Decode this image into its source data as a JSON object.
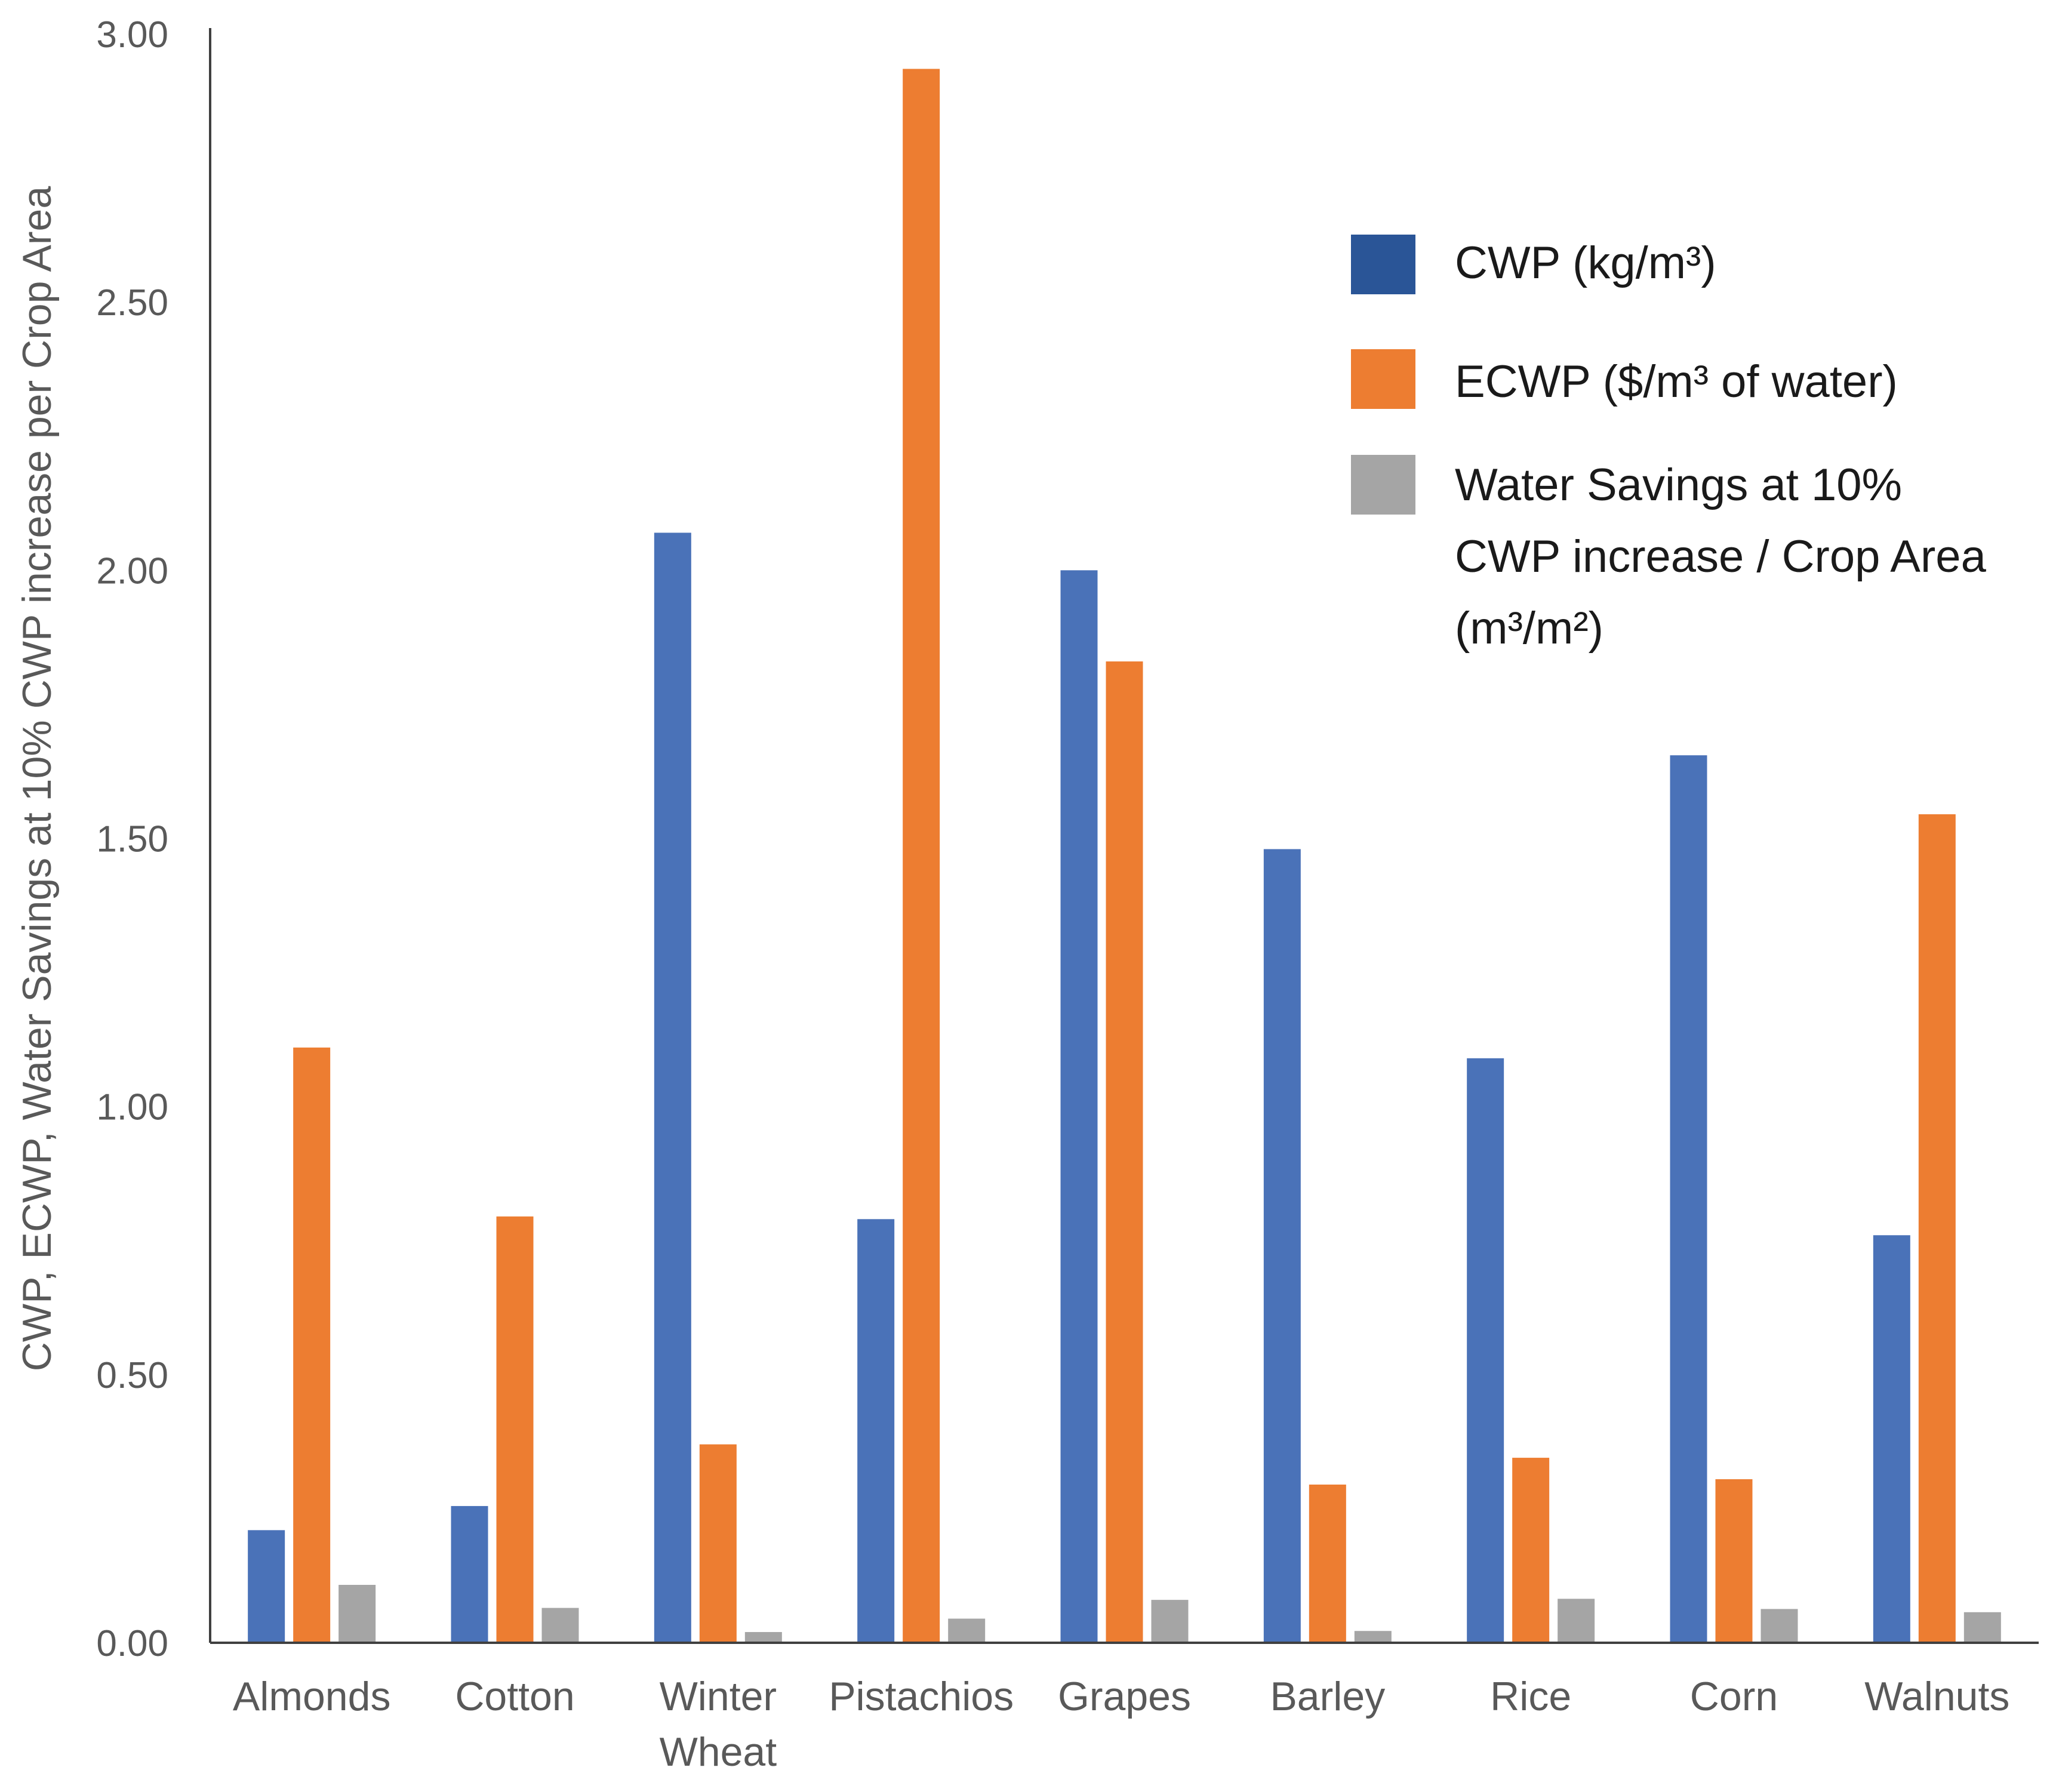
{
  "chart_data": {
    "type": "bar",
    "title": "",
    "xlabel": "",
    "ylabel": "CWP, ECWP, Water Savings at 10% CWP increase per Crop Area",
    "ylim": [
      0,
      3
    ],
    "yticks": [
      "0.00",
      "0.50",
      "1.00",
      "1.50",
      "2.00",
      "2.50",
      "3.00"
    ],
    "grid": false,
    "legend_position": "top-right",
    "categories": [
      [
        "Almonds"
      ],
      [
        "Cotton"
      ],
      [
        "Winter",
        "Wheat"
      ],
      [
        "Pistachios"
      ],
      [
        "Grapes"
      ],
      [
        "Barley"
      ],
      [
        "Rice"
      ],
      [
        "Corn"
      ],
      [
        "Walnuts"
      ]
    ],
    "series": [
      {
        "name": "CWP (kg/m³)",
        "legend_lines": [
          "CWP (kg/m³)"
        ],
        "color": "#4a72b8",
        "legend_color": "#2a5597",
        "values": [
          0.21,
          0.255,
          2.07,
          0.79,
          2.0,
          1.48,
          1.09,
          1.655,
          0.76
        ]
      },
      {
        "name": "ECWP ($/m³ of water)",
        "legend_lines": [
          "ECWP ($/m³ of water)"
        ],
        "color": "#ed7d31",
        "legend_color": "#ed7d31",
        "values": [
          1.11,
          0.795,
          0.37,
          2.935,
          1.83,
          0.295,
          0.345,
          0.305,
          1.545
        ]
      },
      {
        "name": "Water Savings at 10% CWP increase / Crop Area (m³/m²)",
        "legend_lines": [
          "Water Savings at 10%",
          "CWP increase / Crop Area",
          "(m³/m²)"
        ],
        "color": "#a5a5a5",
        "legend_color": "#a5a5a5",
        "values": [
          0.108,
          0.065,
          0.02,
          0.045,
          0.08,
          0.022,
          0.082,
          0.063,
          0.057
        ]
      }
    ]
  }
}
